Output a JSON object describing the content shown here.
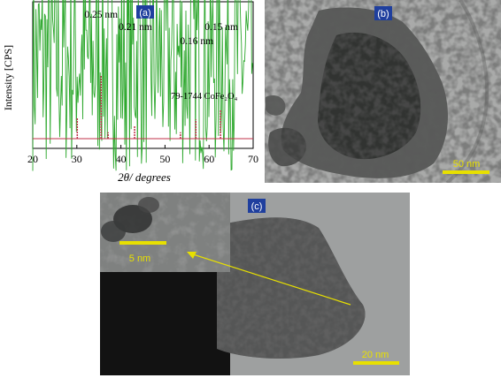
{
  "panel_a": {
    "tag": "(a)",
    "ylabel": "Intensity [CPS]",
    "xlabel": "2θ/ degrees",
    "reference_label": "79-1744  CoFe₂O₄",
    "peak_labels": [
      {
        "text": "0.25 nm",
        "x": 35.5
      },
      {
        "text": "0.21 nm",
        "x": 43.3
      },
      {
        "text": "0.16 nm",
        "x": 57.2
      },
      {
        "text": "0.15 nm",
        "x": 62.8
      }
    ],
    "xticks": [
      "20",
      "30",
      "40",
      "50",
      "60",
      "70"
    ],
    "colors": {
      "measured": "#2ea82e",
      "reference": "#c0304a",
      "tag_bg": "#1f3f9e"
    }
  },
  "panel_b": {
    "tag": "(b)",
    "scale_bar_label": "50 nm",
    "scale_color": "#e8e000"
  },
  "panel_c": {
    "tag": "(c)",
    "inset_scale_label": "5 nm",
    "main_scale_label": "20 nm",
    "scale_color": "#e8e000"
  },
  "chart_data": {
    "type": "line",
    "title": "",
    "xlabel": "2θ/ degrees",
    "ylabel": "Intensity [CPS]",
    "xlim": [
      20,
      70
    ],
    "grid": false,
    "legend": "none",
    "series": [
      {
        "name": "",
        "peaks": [
          [
            30.3,
            0.35
          ],
          [
            35.6,
            0.85
          ],
          [
            37.2,
            0.2
          ],
          [
            43.3,
            0.45
          ],
          [
            53.7,
            0.22
          ],
          [
            57.2,
            0.5
          ],
          [
            62.8,
            0.8
          ]
        ]
      },
      {
        "name": "79-1744  CoFe₂O₄",
        "peaks": [
          [
            30.1,
            0.33
          ],
          [
            35.5,
            1.0
          ],
          [
            37.1,
            0.1
          ],
          [
            43.1,
            0.2
          ],
          [
            53.5,
            0.1
          ],
          [
            57.0,
            0.3
          ],
          [
            62.6,
            0.45
          ]
        ]
      }
    ]
  }
}
